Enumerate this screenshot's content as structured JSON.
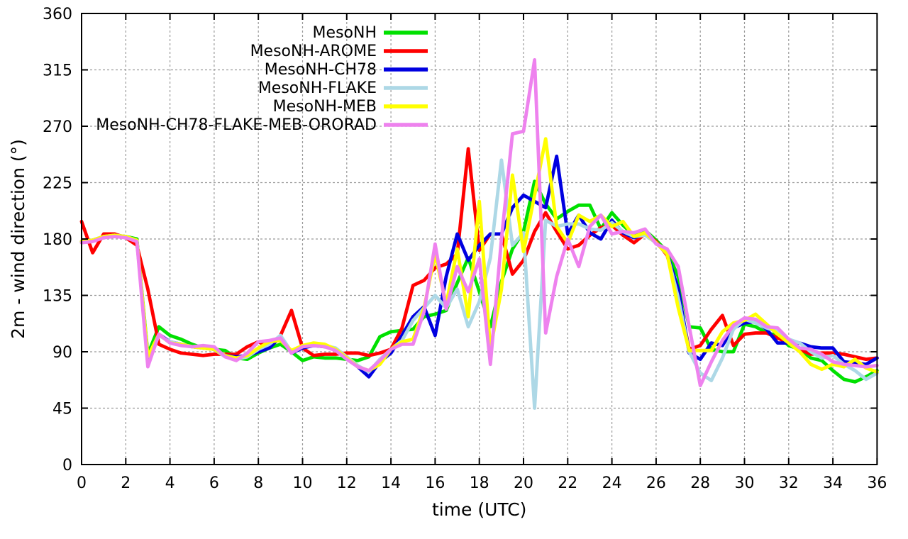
{
  "page": {
    "background": "#ffffff"
  },
  "chart_data": {
    "type": "line",
    "title": "",
    "xlabel": "time (UTC)",
    "ylabel": "2m - wind direction (°)",
    "xlim": [
      0,
      36
    ],
    "ylim": [
      0,
      360
    ],
    "xtick_step": 2,
    "ytick_step": 45,
    "grid": true,
    "legend_position": "top-center-inside",
    "axis_color": "#000000",
    "grid_color": "#999999",
    "x": [
      0,
      0.5,
      1,
      1.5,
      2,
      2.5,
      3,
      3.5,
      4,
      4.5,
      5,
      5.5,
      6,
      6.5,
      7,
      7.5,
      8,
      8.5,
      9,
      9.5,
      10,
      10.5,
      11,
      11.5,
      12,
      12.5,
      13,
      13.5,
      14,
      14.5,
      15,
      15.5,
      16,
      16.5,
      17,
      17.5,
      18,
      18.5,
      19,
      19.5,
      20,
      20.5,
      21,
      21.5,
      22,
      22.5,
      23,
      23.5,
      24,
      24.5,
      25,
      25.5,
      26,
      26.5,
      27,
      27.5,
      28,
      28.5,
      29,
      29.5,
      30,
      30.5,
      31,
      31.5,
      32,
      32.5,
      33,
      33.5,
      34,
      34.5,
      35,
      35.5,
      36
    ],
    "series": [
      {
        "name": "MesoNH",
        "color": "#00e000",
        "values": [
          178,
          179,
          182,
          183,
          182,
          180,
          88,
          110,
          103,
          100,
          96,
          93,
          92,
          91,
          85,
          84,
          89,
          93,
          96,
          90,
          83,
          86,
          85,
          85,
          84,
          83,
          86,
          102,
          106,
          107,
          108,
          118,
          120,
          123,
          145,
          165,
          138,
          110,
          146,
          172,
          186,
          226,
          208,
          196,
          202,
          207,
          207,
          188,
          201,
          191,
          183,
          187,
          179,
          170,
          150,
          110,
          109,
          92,
          90,
          90,
          112,
          110,
          105,
          103,
          95,
          92,
          85,
          83,
          75,
          68,
          66,
          70,
          75
        ]
      },
      {
        "name": "MesoNH-AROME",
        "color": "#ff0000",
        "values": [
          194,
          169,
          184,
          184,
          181,
          175,
          140,
          96,
          92,
          89,
          88,
          87,
          88,
          88,
          88,
          94,
          98,
          94,
          103,
          123,
          93,
          87,
          88,
          88,
          89,
          89,
          87,
          89,
          92,
          109,
          143,
          147,
          157,
          160,
          168,
          252,
          171,
          184,
          184,
          152,
          163,
          186,
          201,
          186,
          172,
          175,
          183,
          189,
          191,
          183,
          177,
          184,
          178,
          167,
          135,
          92,
          95,
          108,
          119,
          95,
          104,
          105,
          105,
          101,
          97,
          92,
          88,
          89,
          89,
          88,
          86,
          84,
          85
        ]
      },
      {
        "name": "MesoNH-CH78",
        "color": "#0000e0",
        "values": [
          178,
          179,
          182,
          183,
          182,
          179,
          85,
          104,
          98,
          96,
          94,
          93,
          92,
          87,
          86,
          87,
          90,
          93,
          102,
          89,
          93,
          95,
          94,
          92,
          85,
          78,
          70,
          82,
          89,
          103,
          118,
          126,
          103,
          150,
          184,
          163,
          175,
          184,
          184,
          205,
          215,
          210,
          205,
          246,
          184,
          199,
          185,
          180,
          195,
          185,
          181,
          184,
          177,
          168,
          140,
          89,
          84,
          97,
          95,
          109,
          113,
          114,
          108,
          97,
          97,
          97,
          94,
          93,
          93,
          82,
          81,
          80,
          85
        ]
      },
      {
        "name": "MesoNH-FLAKE",
        "color": "#add8e6",
        "values": [
          178,
          179,
          182,
          183,
          182,
          179,
          86,
          103,
          98,
          96,
          94,
          93,
          92,
          86,
          84,
          86,
          92,
          96,
          103,
          90,
          94,
          96,
          95,
          93,
          86,
          79,
          74,
          84,
          92,
          99,
          115,
          125,
          135,
          125,
          140,
          110,
          130,
          165,
          243,
          175,
          185,
          45,
          195,
          190,
          192,
          192,
          188,
          187,
          193,
          186,
          182,
          183,
          177,
          168,
          133,
          90,
          73,
          67,
          85,
          108,
          116,
          113,
          109,
          106,
          100,
          97,
          90,
          85,
          87,
          80,
          75,
          68,
          73
        ]
      },
      {
        "name": "MesoNH-MEB",
        "color": "#ffff00",
        "values": [
          178,
          179,
          182,
          183,
          182,
          179,
          86,
          104,
          97,
          96,
          94,
          93,
          92,
          87,
          85,
          87,
          93,
          98,
          99,
          91,
          95,
          97,
          96,
          92,
          85,
          78,
          75,
          80,
          92,
          98,
          100,
          125,
          168,
          128,
          172,
          118,
          210,
          92,
          140,
          231,
          170,
          215,
          260,
          190,
          177,
          199,
          194,
          199,
          190,
          194,
          182,
          185,
          177,
          168,
          125,
          91,
          91,
          91,
          106,
          113,
          115,
          120,
          112,
          104,
          97,
          90,
          80,
          76,
          80,
          78,
          84,
          77,
          74
        ]
      },
      {
        "name": "MesoNH-CH78-FLAKE-MEB-ORORAD",
        "color": "#ee82ee",
        "values": [
          177,
          178,
          181,
          182,
          181,
          178,
          78,
          104,
          97,
          95,
          94,
          95,
          94,
          86,
          83,
          89,
          98,
          99,
          101,
          89,
          94,
          95,
          94,
          91,
          84,
          78,
          75,
          83,
          92,
          96,
          96,
          122,
          176,
          124,
          158,
          138,
          164,
          80,
          180,
          264,
          266,
          323,
          105,
          150,
          180,
          158,
          190,
          199,
          184,
          186,
          185,
          188,
          176,
          172,
          158,
          110,
          63,
          82,
          99,
          111,
          117,
          116,
          110,
          109,
          100,
          93,
          92,
          88,
          82,
          80,
          79,
          78,
          79
        ]
      }
    ]
  }
}
